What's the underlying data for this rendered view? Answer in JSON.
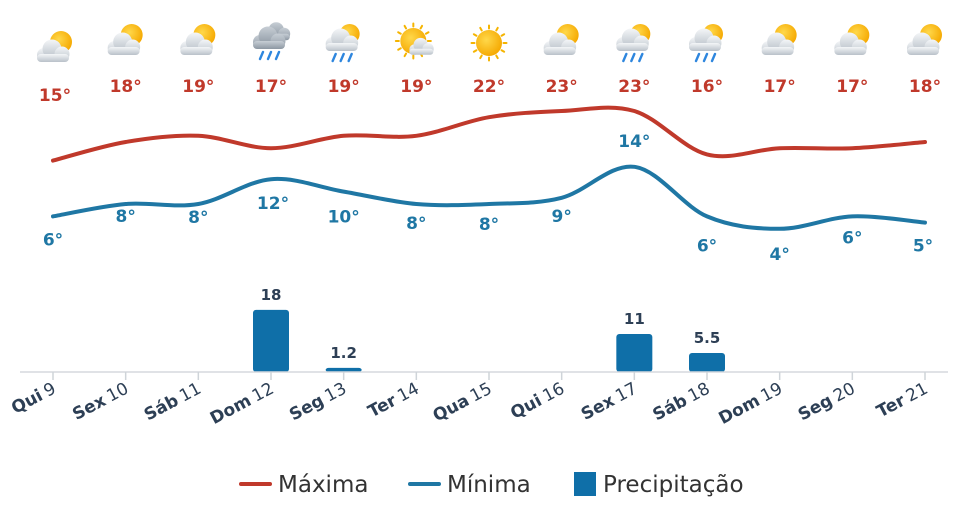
{
  "chart_data": {
    "type": "line",
    "categories": [
      {
        "weekday": "Qui",
        "day": "9"
      },
      {
        "weekday": "Sex",
        "day": "10"
      },
      {
        "weekday": "Sáb",
        "day": "11"
      },
      {
        "weekday": "Dom",
        "day": "12"
      },
      {
        "weekday": "Seg",
        "day": "13"
      },
      {
        "weekday": "Ter",
        "day": "14"
      },
      {
        "weekday": "Qua",
        "day": "15"
      },
      {
        "weekday": "Qui",
        "day": "16"
      },
      {
        "weekday": "Sex",
        "day": "17"
      },
      {
        "weekday": "Sáb",
        "day": "18"
      },
      {
        "weekday": "Dom",
        "day": "19"
      },
      {
        "weekday": "Seg",
        "day": "20"
      },
      {
        "weekday": "Ter",
        "day": "21"
      }
    ],
    "icons": [
      "partly-cloudy-icon",
      "partly-cloudy-icon",
      "partly-cloudy-icon",
      "rain-cloud-icon",
      "sun-cloud-rain-icon",
      "mostly-sunny-icon",
      "sun-icon",
      "partly-cloudy-icon",
      "sun-cloud-rain-icon",
      "sun-cloud-rain-icon",
      "partly-cloudy-icon",
      "partly-cloudy-icon",
      "partly-cloudy-icon"
    ],
    "series": [
      {
        "name": "Máxima",
        "color": "#c0392b",
        "values": [
          15,
          18,
          19,
          17,
          19,
          19,
          22,
          23,
          23,
          16,
          17,
          17,
          18
        ],
        "labels": [
          "15°",
          "18°",
          "19°",
          "17°",
          "19°",
          "19°",
          "22°",
          "23°",
          "23°",
          "16°",
          "17°",
          "17°",
          "18°"
        ]
      },
      {
        "name": "Mínima",
        "color": "#1f77a4",
        "values": [
          6,
          8,
          8,
          12,
          10,
          8,
          8,
          9,
          14,
          6,
          4,
          6,
          5
        ],
        "labels": [
          "6°",
          "8°",
          "8°",
          "12°",
          "10°",
          "8°",
          "8°",
          "9°",
          "14°",
          "6°",
          "4°",
          "6°",
          "5°"
        ]
      },
      {
        "name": "Precipitação",
        "color": "#0f6fa8",
        "kind": "bar",
        "values": [
          0,
          0,
          0,
          18,
          1.2,
          0,
          0,
          0,
          11,
          5.5,
          0,
          0,
          0
        ],
        "labels": [
          "",
          "",
          "",
          "18",
          "1.2",
          "",
          "",
          "",
          "11",
          "5.5",
          "",
          "",
          ""
        ]
      }
    ],
    "legend": {
      "placement": "bottom",
      "items": [
        {
          "label": "Máxima",
          "color": "#c0392b",
          "shape": "line"
        },
        {
          "label": "Mínima",
          "color": "#1f77a4",
          "shape": "line"
        },
        {
          "label": "Precipitação",
          "color": "#0f6fa8",
          "shape": "square"
        }
      ]
    },
    "grid": false,
    "title": "",
    "xlabel": "",
    "ylabel": ""
  }
}
